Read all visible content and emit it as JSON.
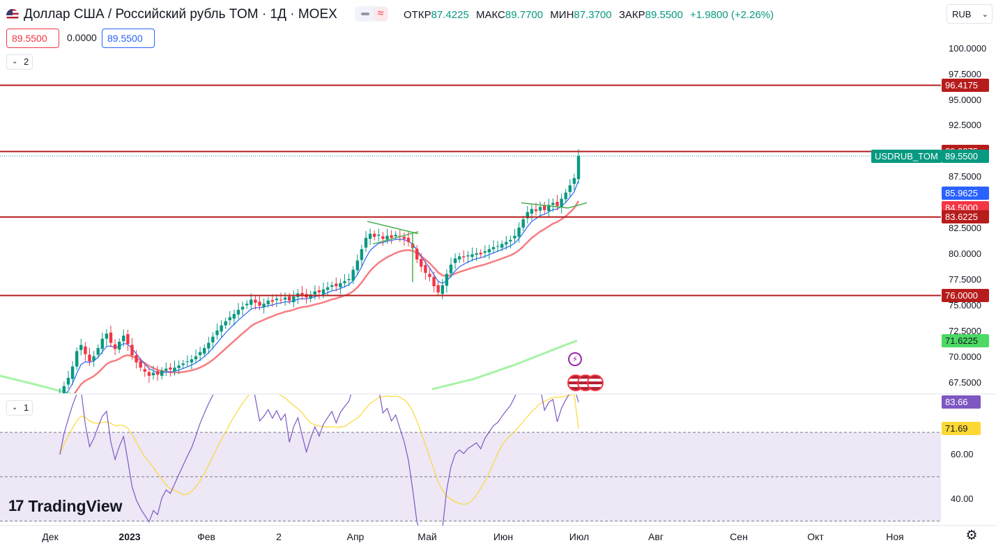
{
  "header": {
    "title": "Доллар США / Российский рубль TOM · 1Д · MOEX",
    "ohlc": {
      "open_label": "ОТКР",
      "open": "87.4225",
      "high_label": "МАКС",
      "high": "89.7700",
      "low_label": "МИН",
      "low": "87.3700",
      "close_label": "ЗАКР",
      "close": "89.5500",
      "change": "+1.9800 (+2.26%)"
    },
    "currency": "RUB",
    "bid": "89.5500",
    "spread": "0.0000",
    "ask": "89.5500",
    "main_pane_collapse": "2",
    "rsi_pane_collapse": "1"
  },
  "colors": {
    "up": "#089981",
    "down": "#f23645",
    "level": "#b71c1c",
    "ema_fast": "#2962ff",
    "ema_slow": "#f77c80",
    "ma_long": "#a5f3a5",
    "rsi": "#7e57c2",
    "rsi_ma": "#fdd835",
    "rsi_band": "#ede7f6",
    "trend": "#4caf50"
  },
  "price_axis": {
    "labels": [
      "100.0000",
      "97.5000",
      "95.0000",
      "92.5000",
      "87.5000",
      "82.5000",
      "80.0000",
      "77.5000",
      "75.0000",
      "72.5000",
      "70.0000",
      "67.5000"
    ],
    "badges": [
      {
        "text": "96.4175",
        "color": "#b71c1c"
      },
      {
        "text": "89.9875",
        "color": "#b71c1c"
      },
      {
        "text": "89.5500",
        "color": "#089981"
      },
      {
        "text": "85.9625",
        "color": "#2962ff"
      },
      {
        "text": "84.5000",
        "color": "#f23645"
      },
      {
        "text": "83.6225",
        "color": "#b71c1c"
      },
      {
        "text": "76.0000",
        "color": "#b71c1c"
      },
      {
        "text": "71.6225",
        "color": "#4cd964"
      }
    ],
    "symbol_badge": "USDRUB_TOM"
  },
  "rsi_axis": {
    "labels": [
      "60.00",
      "40.00"
    ],
    "badges": [
      {
        "text": "83.66",
        "color": "#7e57c2"
      },
      {
        "text": "71.69",
        "color": "#fdd835"
      }
    ]
  },
  "time_axis": [
    "Дек",
    "2023",
    "Фев",
    "2",
    "Апр",
    "Май",
    "Июн",
    "Июл",
    "Авг",
    "Сен",
    "Окт",
    "Ноя"
  ],
  "logo": "TradingView",
  "chart_data": [
    {
      "type": "candlestick",
      "symbol": "USDRUB_TOM",
      "ylim": [
        66.5,
        102
      ],
      "horizontal_levels": [
        96.4175,
        89.9875,
        83.6225,
        76.0
      ],
      "last_price": 89.55,
      "close_series": [
        65.8,
        66.4,
        67.2,
        68.0,
        69.1,
        70.6,
        71.2,
        70.3,
        69.6,
        70.1,
        70.9,
        71.8,
        72.3,
        71.4,
        70.8,
        71.5,
        72.1,
        71.3,
        70.2,
        69.5,
        69.0,
        68.6,
        68.2,
        68.5,
        68.3,
        68.7,
        68.9,
        68.8,
        69.0,
        69.2,
        69.4,
        69.6,
        69.8,
        70.1,
        70.5,
        70.9,
        71.4,
        72.0,
        72.6,
        73.1,
        73.5,
        73.9,
        74.2,
        74.6,
        74.9,
        75.2,
        75.6,
        75.3,
        75.0,
        75.2,
        75.5,
        75.4,
        75.7,
        75.6,
        75.8,
        75.5,
        75.9,
        76.2,
        76.0,
        75.8,
        76.1,
        76.4,
        76.3,
        76.6,
        76.8,
        77.0,
        76.9,
        77.2,
        77.4,
        77.6,
        78.5,
        79.4,
        80.5,
        81.6,
        82.0,
        81.7,
        81.9,
        81.5,
        81.8,
        81.6,
        81.9,
        81.7,
        81.5,
        81.2,
        80.6,
        79.5,
        78.8,
        78.2,
        77.8,
        76.9,
        76.3,
        77.0,
        78.1,
        79.0,
        79.6,
        79.8,
        79.7,
        79.9,
        80.0,
        80.1,
        80.0,
        80.3,
        80.5,
        80.7,
        80.8,
        81.0,
        81.2,
        81.4,
        81.8,
        82.6,
        83.4,
        84.1,
        84.4,
        84.2,
        84.6,
        84.3,
        84.8,
        85.0,
        84.7,
        85.4,
        86.0,
        86.7,
        87.4,
        89.55
      ],
      "ema_fast_last": 85.9625,
      "ema_slow_last": 84.5,
      "ma_long_last": 71.6225
    },
    {
      "type": "line",
      "name": "RSI",
      "ylim": [
        28,
        87
      ],
      "bands": [
        70,
        50,
        30
      ],
      "rsi_last": 83.66,
      "rsi_ma_last": 71.69
    }
  ]
}
